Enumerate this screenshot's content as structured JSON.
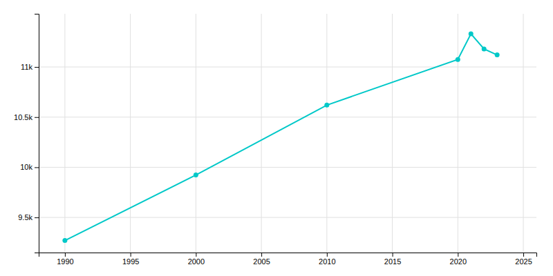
{
  "chart_data": {
    "type": "line",
    "x": [
      1990,
      2000,
      2010,
      2020,
      2021,
      2022,
      2023
    ],
    "values": [
      9270,
      9923,
      10620,
      11075,
      11330,
      11180,
      11120
    ],
    "color": "#00C8C8",
    "marker": "circle",
    "xlim": [
      1988,
      2026
    ],
    "ylim": [
      9150,
      11530
    ],
    "xticks": [
      1990,
      1995,
      2000,
      2005,
      2010,
      2015,
      2020,
      2025
    ],
    "yticks": [
      {
        "value": 9500,
        "label": "9.5k"
      },
      {
        "value": 10000,
        "label": "10k"
      },
      {
        "value": 10500,
        "label": "10.5k"
      },
      {
        "value": 11000,
        "label": "11k"
      }
    ],
    "grid": true
  }
}
